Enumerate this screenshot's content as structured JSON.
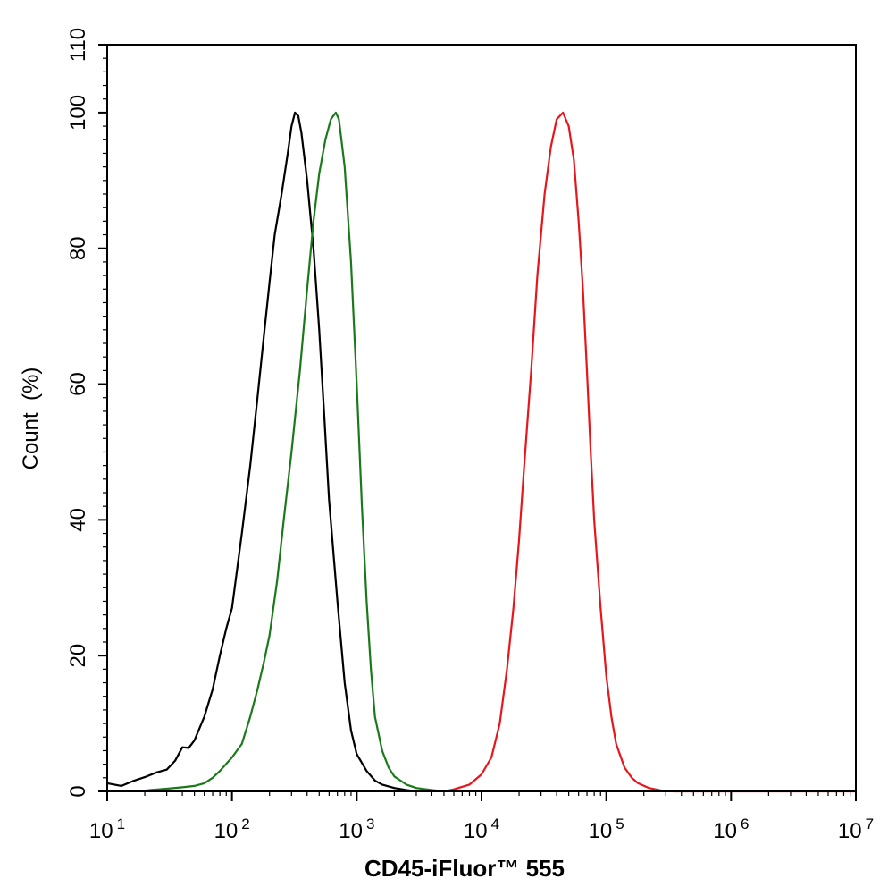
{
  "chart_data": {
    "type": "line",
    "title": "",
    "xlabel": "CD45-iFluor™ 555",
    "ylabel": "Count  (%)",
    "xscale": "log",
    "xlim": [
      10,
      10000000
    ],
    "ylim": [
      0,
      110
    ],
    "x_ticks": [
      {
        "base": "10",
        "exp": "1",
        "value": 10
      },
      {
        "base": "10",
        "exp": "2",
        "value": 100
      },
      {
        "base": "10",
        "exp": "3",
        "value": 1000
      },
      {
        "base": "10",
        "exp": "4",
        "value": 10000
      },
      {
        "base": "10",
        "exp": "5",
        "value": 100000
      },
      {
        "base": "10",
        "exp": "6",
        "value": 1000000
      },
      {
        "base": "10",
        "exp": "7",
        "value": 10000000
      }
    ],
    "y_ticks": [
      0,
      20,
      40,
      60,
      80,
      100,
      110
    ],
    "grid": false,
    "legend": "none",
    "series": [
      {
        "color": "#000000",
        "points": [
          [
            10,
            1.2
          ],
          [
            13,
            0.8
          ],
          [
            16,
            1.5
          ],
          [
            20,
            2.1
          ],
          [
            25,
            2.8
          ],
          [
            30,
            3.2
          ],
          [
            35,
            4.5
          ],
          [
            40,
            6.5
          ],
          [
            45,
            6.4
          ],
          [
            50,
            7.5
          ],
          [
            60,
            11
          ],
          [
            70,
            15
          ],
          [
            80,
            20
          ],
          [
            90,
            24
          ],
          [
            100,
            27
          ],
          [
            120,
            38
          ],
          [
            140,
            48
          ],
          [
            160,
            58
          ],
          [
            180,
            67
          ],
          [
            200,
            75
          ],
          [
            220,
            82
          ],
          [
            250,
            88
          ],
          [
            280,
            94
          ],
          [
            300,
            98
          ],
          [
            320,
            100
          ],
          [
            340,
            99.5
          ],
          [
            360,
            97
          ],
          [
            400,
            90
          ],
          [
            450,
            80
          ],
          [
            500,
            68
          ],
          [
            550,
            55
          ],
          [
            600,
            43
          ],
          [
            700,
            28
          ],
          [
            800,
            16
          ],
          [
            900,
            9
          ],
          [
            1000,
            5.5
          ],
          [
            1200,
            3
          ],
          [
            1400,
            1.6
          ],
          [
            1600,
            1
          ],
          [
            2000,
            0.5
          ],
          [
            2500,
            0.2
          ],
          [
            3000,
            0
          ]
        ]
      },
      {
        "color": "#1a7a1a",
        "points": [
          [
            18,
            0
          ],
          [
            22,
            0.2
          ],
          [
            30,
            0.4
          ],
          [
            40,
            0.6
          ],
          [
            50,
            0.8
          ],
          [
            60,
            1.2
          ],
          [
            70,
            2
          ],
          [
            80,
            3
          ],
          [
            100,
            5
          ],
          [
            120,
            7
          ],
          [
            140,
            11
          ],
          [
            160,
            15
          ],
          [
            180,
            19
          ],
          [
            200,
            23
          ],
          [
            230,
            31
          ],
          [
            260,
            40
          ],
          [
            300,
            50
          ],
          [
            350,
            62
          ],
          [
            400,
            74
          ],
          [
            450,
            84
          ],
          [
            500,
            91
          ],
          [
            560,
            96
          ],
          [
            620,
            99
          ],
          [
            680,
            100
          ],
          [
            720,
            99
          ],
          [
            800,
            92
          ],
          [
            900,
            78
          ],
          [
            1000,
            60
          ],
          [
            1100,
            42
          ],
          [
            1200,
            28
          ],
          [
            1300,
            18
          ],
          [
            1400,
            11
          ],
          [
            1600,
            6
          ],
          [
            1800,
            3.5
          ],
          [
            2000,
            2.2
          ],
          [
            2500,
            1
          ],
          [
            3000,
            0.5
          ],
          [
            4000,
            0.2
          ],
          [
            5000,
            0
          ]
        ]
      },
      {
        "color": "#e8161b",
        "points": [
          [
            5000,
            0
          ],
          [
            6000,
            0.3
          ],
          [
            8000,
            1
          ],
          [
            10000,
            2.5
          ],
          [
            12000,
            5
          ],
          [
            14000,
            10
          ],
          [
            16000,
            18
          ],
          [
            18000,
            27
          ],
          [
            20000,
            37
          ],
          [
            22000,
            48
          ],
          [
            25000,
            62
          ],
          [
            28000,
            76
          ],
          [
            32000,
            88
          ],
          [
            36000,
            95
          ],
          [
            40000,
            99
          ],
          [
            45000,
            100
          ],
          [
            50000,
            98
          ],
          [
            55000,
            93
          ],
          [
            60000,
            84
          ],
          [
            65000,
            74
          ],
          [
            70000,
            62
          ],
          [
            75000,
            50
          ],
          [
            80000,
            40
          ],
          [
            90000,
            27
          ],
          [
            100000,
            17
          ],
          [
            110000,
            11
          ],
          [
            120000,
            7
          ],
          [
            140000,
            3.5
          ],
          [
            160000,
            2
          ],
          [
            180000,
            1.2
          ],
          [
            220000,
            0.5
          ],
          [
            280000,
            0.1
          ],
          [
            350000,
            0
          ],
          [
            10000000,
            0
          ]
        ]
      }
    ]
  }
}
